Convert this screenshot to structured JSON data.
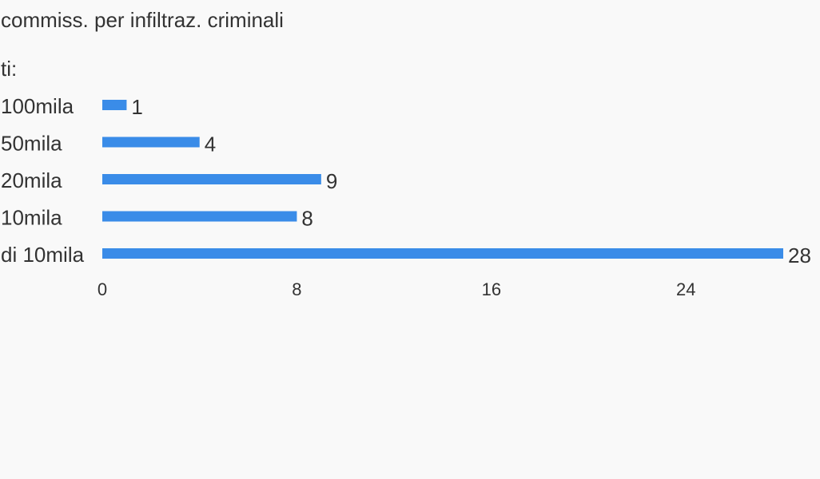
{
  "header": {
    "title": "commiss. per infiltraz. criminali",
    "subtitle": "ti:"
  },
  "colors": {
    "bar": "#3a8ce8",
    "text": "#333333",
    "background": "#f9f9f9"
  },
  "chart_data": {
    "type": "bar",
    "orientation": "horizontal",
    "categories": [
      "100mila",
      "50mila",
      "20mila",
      "10mila",
      "di 10mila"
    ],
    "values": [
      1,
      4,
      9,
      8,
      28
    ],
    "xticks": [
      0,
      8,
      16,
      24
    ],
    "xlim": [
      0,
      28
    ],
    "grid": false,
    "legend": false
  }
}
